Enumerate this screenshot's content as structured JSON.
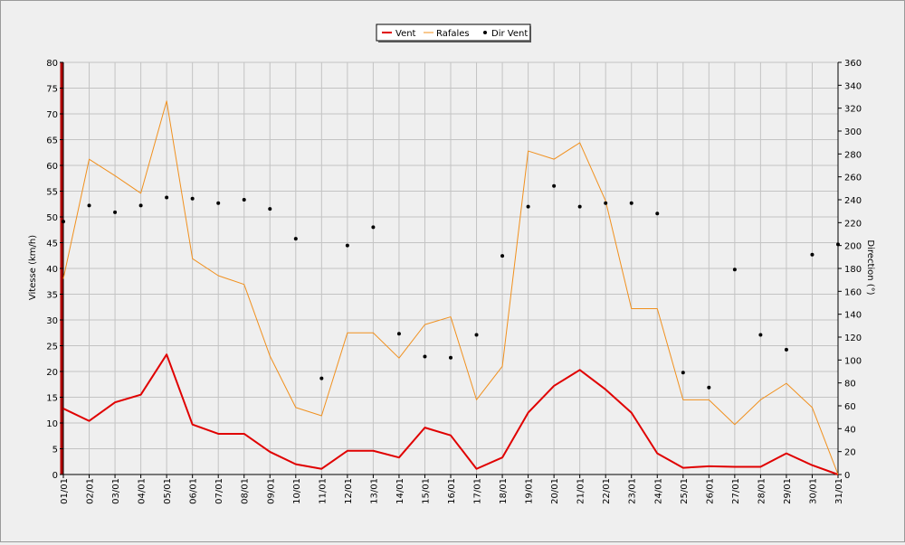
{
  "chart_data": {
    "type": "line",
    "categories": [
      "01/01",
      "02/01",
      "03/01",
      "04/01",
      "05/01",
      "06/01",
      "07/01",
      "08/01",
      "09/01",
      "10/01",
      "11/01",
      "12/01",
      "13/01",
      "14/01",
      "15/01",
      "16/01",
      "17/01",
      "18/01",
      "19/01",
      "20/01",
      "21/01",
      "22/01",
      "23/01",
      "24/01",
      "25/01",
      "26/01",
      "27/01",
      "28/01",
      "29/01",
      "30/01",
      "31/01"
    ],
    "ylabel": "Vitesse (km/h)",
    "y2label": "Direction (°)",
    "ylim": [
      0,
      80
    ],
    "y2lim": [
      0,
      360
    ],
    "yticks": [
      "0",
      "5",
      "10",
      "15",
      "20",
      "25",
      "30",
      "35",
      "40",
      "45",
      "50",
      "55",
      "60",
      "65",
      "70",
      "75",
      "80"
    ],
    "y2ticks": [
      "0",
      "20",
      "40",
      "60",
      "80",
      "100",
      "120",
      "140",
      "160",
      "180",
      "200",
      "220",
      "240",
      "260",
      "280",
      "300",
      "320",
      "340",
      "360"
    ],
    "grid": true,
    "legend_position": "top-center",
    "series": [
      {
        "name": "Vent",
        "color": "#e00000",
        "axis": "left",
        "values": [
          12.8,
          10.4,
          14.0,
          15.5,
          23.3,
          9.7,
          7.9,
          7.9,
          4.4,
          2.0,
          1.1,
          4.6,
          4.6,
          3.3,
          9.1,
          7.6,
          1.1,
          3.3,
          12.0,
          17.2,
          20.3,
          16.5,
          12.0,
          4.1,
          1.3,
          1.6,
          1.5,
          1.5,
          4.1,
          1.8,
          0.0
        ]
      },
      {
        "name": "Rafales",
        "color": "#f0901e",
        "axis": "left",
        "values": [
          38.0,
          61.2,
          58.0,
          54.6,
          72.5,
          41.9,
          38.6,
          36.9,
          23.0,
          13.0,
          11.4,
          27.5,
          27.5,
          22.6,
          29.1,
          30.6,
          14.5,
          21.0,
          62.8,
          61.2,
          64.4,
          53.1,
          32.2,
          32.2,
          14.5,
          14.5,
          9.7,
          14.5,
          17.7,
          13.0,
          0.0
        ]
      },
      {
        "name": "Dir Vent",
        "color": "#000000",
        "axis": "right",
        "style": "points",
        "values": [
          221,
          235,
          229,
          235,
          242,
          241,
          237,
          240,
          232,
          206,
          84,
          200,
          216,
          123,
          103,
          102,
          122,
          191,
          234,
          252,
          234,
          237,
          237,
          228,
          89,
          76,
          179,
          122,
          109,
          192,
          201
        ]
      }
    ]
  }
}
